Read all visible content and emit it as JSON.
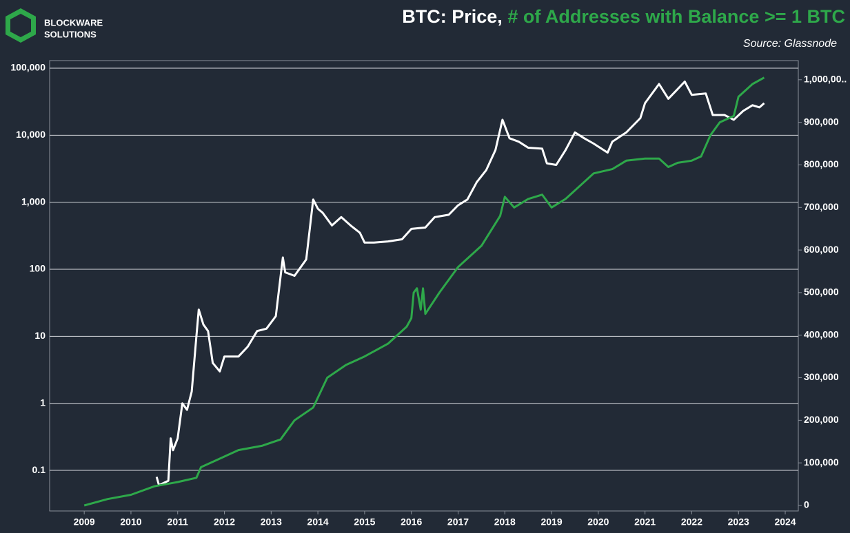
{
  "brand": {
    "line1": "BLOCKWARE",
    "line2": "SOLUTIONS"
  },
  "chart_data": {
    "type": "line",
    "title_parts": [
      "BTC: Price,",
      "# of Addresses with Balance >= 1 BTC"
    ],
    "title_colors": [
      "#ffffff",
      "#2ea84a"
    ],
    "source": "Source: Glassnode",
    "xlim": [
      2008.26,
      2024.28
    ],
    "xticks": [
      2009,
      2010,
      2011,
      2012,
      2013,
      2014,
      2015,
      2016,
      2017,
      2018,
      2019,
      2020,
      2021,
      2022,
      2023,
      2024
    ],
    "ylim": [
      0.0248,
      129700
    ],
    "log_y": true,
    "yticks": [
      0.1,
      1,
      10,
      100,
      {
        "value": 1000,
        "label": "1,000"
      },
      {
        "value": 10000,
        "label": "10,000"
      },
      {
        "value": 100000,
        "label": "100,000"
      }
    ],
    "y2lim": [
      -12950,
      1045000
    ],
    "y2ticks": [
      0,
      {
        "value": 100000,
        "label": "100,000"
      },
      {
        "value": 200000,
        "label": "200,000"
      },
      {
        "value": 300000,
        "label": "300,000"
      },
      {
        "value": 400000,
        "label": "400,000"
      },
      {
        "value": 500000,
        "label": "500,000"
      },
      {
        "value": 600000,
        "label": "600,000"
      },
      {
        "value": 700000,
        "label": "700,000"
      },
      {
        "value": 800000,
        "label": "800,000"
      },
      {
        "value": 900000,
        "label": "900,000"
      },
      {
        "value": 1000000,
        "label": "1,000,00.."
      }
    ],
    "grid": true,
    "series": [
      {
        "color": "#ffffff",
        "axis": "y",
        "x": [
          2010.55,
          2010.6,
          2010.8,
          2010.85,
          2010.9,
          2011.0,
          2011.1,
          2011.2,
          2011.3,
          2011.4,
          2011.45,
          2011.55,
          2011.65,
          2011.75,
          2011.9,
          2012.0,
          2012.3,
          2012.5,
          2012.7,
          2012.9,
          2013.1,
          2013.25,
          2013.3,
          2013.5,
          2013.75,
          2013.9,
          2014.0,
          2014.1,
          2014.3,
          2014.5,
          2014.7,
          2014.9,
          2015.0,
          2015.2,
          2015.5,
          2015.8,
          2016.0,
          2016.3,
          2016.5,
          2016.8,
          2017.0,
          2017.2,
          2017.4,
          2017.6,
          2017.8,
          2017.95,
          2018.1,
          2018.3,
          2018.5,
          2018.8,
          2018.9,
          2019.1,
          2019.3,
          2019.5,
          2019.7,
          2019.9,
          2020.2,
          2020.3,
          2020.6,
          2020.9,
          2021.0,
          2021.3,
          2021.5,
          2021.65,
          2021.85,
          2022.0,
          2022.3,
          2022.45,
          2022.7,
          2022.9,
          2023.1,
          2023.3,
          2023.45,
          2023.55
        ],
        "values": [
          0.08,
          0.06,
          0.07,
          0.3,
          0.2,
          0.3,
          1.0,
          0.8,
          1.5,
          10,
          25,
          15,
          12,
          4,
          3,
          5,
          5,
          7,
          12,
          13,
          20,
          150,
          90,
          80,
          140,
          1100,
          800,
          700,
          450,
          600,
          450,
          350,
          250,
          250,
          260,
          280,
          400,
          420,
          600,
          650,
          900,
          1100,
          2000,
          3000,
          6000,
          17000,
          9000,
          8000,
          6500,
          6300,
          3800,
          3600,
          6000,
          11000,
          9000,
          7500,
          5500,
          8000,
          11000,
          18000,
          30000,
          58000,
          35000,
          45000,
          63000,
          40000,
          42000,
          20000,
          20000,
          17000,
          23000,
          28000,
          26000,
          30000
        ]
      },
      {
        "color": "#2ea84a",
        "axis": "y2",
        "x": [
          2009.0,
          2009.5,
          2010.0,
          2010.5,
          2011.0,
          2011.4,
          2011.5,
          2011.8,
          2012.3,
          2012.8,
          2013.2,
          2013.5,
          2013.9,
          2014.2,
          2014.6,
          2015.0,
          2015.5,
          2015.9,
          2016.0,
          2016.05,
          2016.12,
          2016.2,
          2016.25,
          2016.3,
          2016.6,
          2017.0,
          2017.5,
          2017.9,
          2018.0,
          2018.2,
          2018.5,
          2018.8,
          2019.0,
          2019.3,
          2019.7,
          2019.9,
          2020.3,
          2020.6,
          2021.0,
          2021.3,
          2021.5,
          2021.7,
          2022.0,
          2022.2,
          2022.4,
          2022.6,
          2022.9,
          2023.0,
          2023.3,
          2023.55
        ],
        "values": [
          0,
          15000,
          25000,
          45000,
          55000,
          65000,
          90000,
          105000,
          130000,
          140000,
          155000,
          200000,
          230000,
          300000,
          330000,
          350000,
          380000,
          420000,
          440000,
          500000,
          510000,
          460000,
          510000,
          450000,
          500000,
          560000,
          610000,
          680000,
          725000,
          700000,
          720000,
          730000,
          700000,
          720000,
          760000,
          780000,
          790000,
          810000,
          815000,
          815000,
          795000,
          805000,
          810000,
          820000,
          870000,
          900000,
          915000,
          960000,
          990000,
          1005000
        ]
      }
    ]
  }
}
